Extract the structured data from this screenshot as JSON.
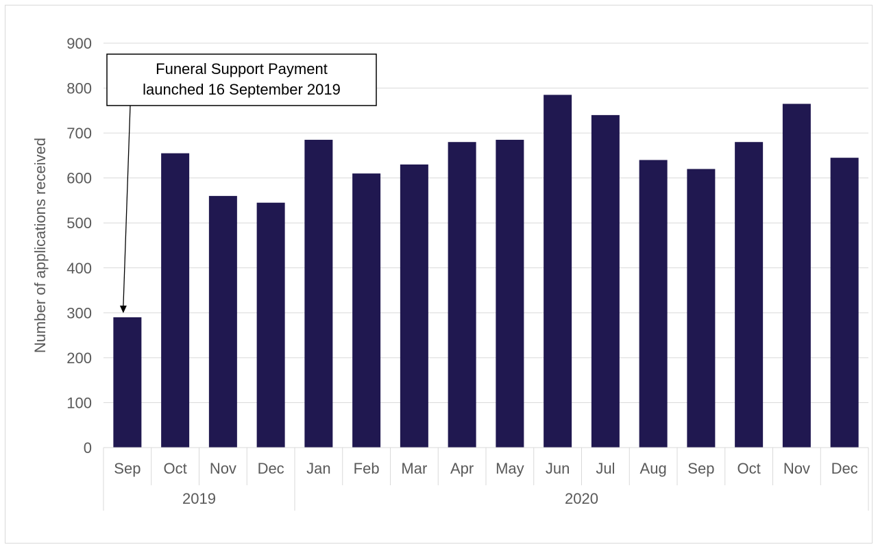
{
  "chart_data": {
    "type": "bar",
    "ylabel": "Number of applications received",
    "xlabel": "",
    "ylim": [
      0,
      900
    ],
    "yticks": [
      0,
      100,
      200,
      300,
      400,
      500,
      600,
      700,
      800,
      900
    ],
    "grid": true,
    "categories": [
      "Sep",
      "Oct",
      "Nov",
      "Dec",
      "Jan",
      "Feb",
      "Mar",
      "Apr",
      "May",
      "Jun",
      "Jul",
      "Aug",
      "Sep",
      "Oct",
      "Nov",
      "Dec"
    ],
    "groups": [
      {
        "label": "2019",
        "count": 4
      },
      {
        "label": "2020",
        "count": 12
      }
    ],
    "values": [
      290,
      655,
      560,
      545,
      685,
      610,
      630,
      680,
      685,
      785,
      740,
      640,
      620,
      680,
      765,
      645
    ],
    "bar_color": "#201850",
    "annotation": {
      "lines": [
        "Funeral Support Payment",
        "launched 16 September 2019"
      ],
      "target_index": 0
    }
  }
}
